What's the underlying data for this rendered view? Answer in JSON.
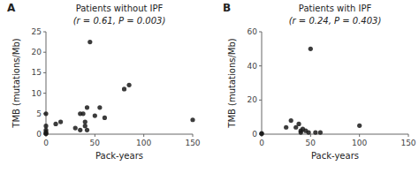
{
  "chart_data": [
    {
      "type": "scatter",
      "annotations": [
        "A"
      ],
      "title": "Patients without IPF",
      "subtitle": "(r = 0.61, P = 0.003)",
      "x_label": "Pack-years",
      "y_label": "TMB (mutations/Mb)",
      "xlim": [
        0,
        150
      ],
      "ylim": [
        0,
        25
      ],
      "xticks": [
        0,
        50,
        100,
        150
      ],
      "yticks": [
        0,
        5,
        10,
        15,
        20,
        25
      ],
      "color": "#1a1a1a",
      "x": [
        0,
        0,
        0,
        0,
        0,
        0,
        10,
        15,
        30,
        35,
        35,
        38,
        40,
        40,
        42,
        42,
        45,
        50,
        55,
        60,
        80,
        85,
        150
      ],
      "values": [
        5,
        2,
        1,
        0.5,
        0.2,
        0.1,
        2.5,
        3,
        1.5,
        5,
        1,
        5,
        3,
        2,
        6.5,
        1,
        22.5,
        4.5,
        6.5,
        4,
        11,
        12,
        3.5
      ]
    },
    {
      "type": "scatter",
      "annotations": [
        "B"
      ],
      "title": "Patients with IPF",
      "subtitle": "(r = 0.24, P = 0.403)",
      "x_label": "Pack-years",
      "y_label": "TMB (mutations/Mb)",
      "xlim": [
        0,
        150
      ],
      "ylim": [
        0,
        60
      ],
      "xticks": [
        0,
        50,
        100,
        150
      ],
      "yticks": [
        0,
        20,
        40,
        60
      ],
      "color": "#1a1a1a",
      "x": [
        0,
        0,
        25,
        30,
        35,
        38,
        40,
        40,
        42,
        45,
        48,
        50,
        55,
        60,
        100
      ],
      "values": [
        0.5,
        0.2,
        4,
        8,
        4,
        6,
        2,
        1,
        3,
        2,
        1,
        50,
        1,
        1,
        5
      ]
    }
  ]
}
